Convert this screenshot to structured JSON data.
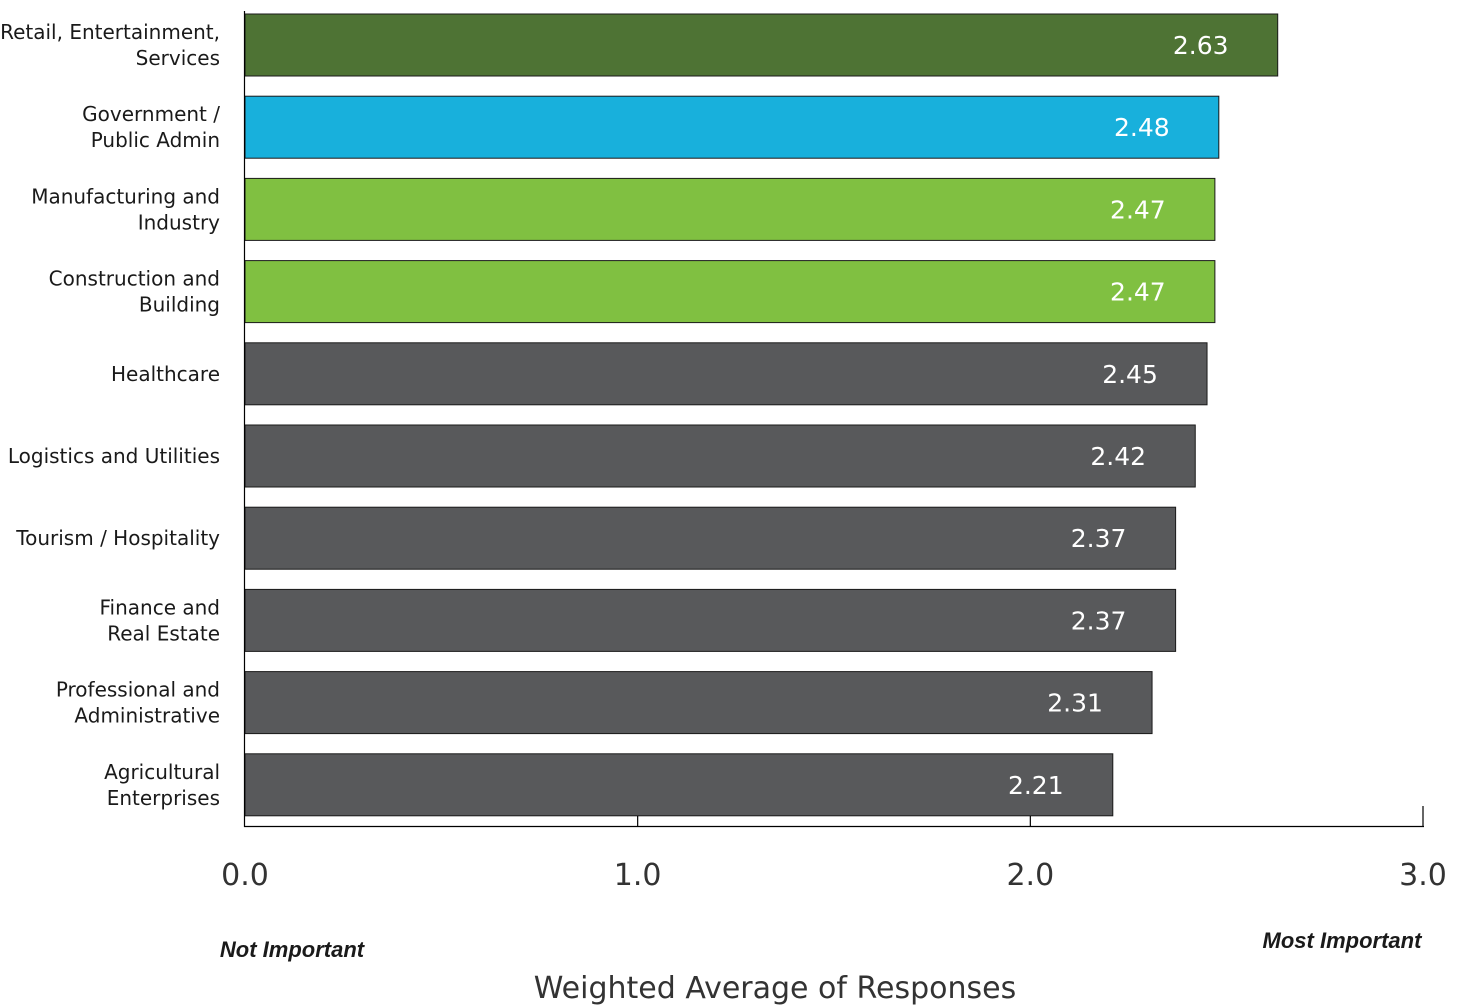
{
  "chart_data": {
    "type": "bar",
    "orientation": "horizontal",
    "categories": [
      [
        "Retail, Entertainment,",
        "Services"
      ],
      [
        "Government  /",
        "Public Admin"
      ],
      [
        "Manufacturing and",
        "Industry"
      ],
      [
        "Construction and",
        "Building"
      ],
      [
        "Healthcare"
      ],
      [
        "Logistics and Utilities"
      ],
      [
        "Tourism / Hospitality"
      ],
      [
        "Finance and",
        "Real Estate"
      ],
      [
        "Professional and",
        "Administrative"
      ],
      [
        "Agricultural",
        "Enterprises"
      ]
    ],
    "values": [
      2.63,
      2.48,
      2.47,
      2.47,
      2.45,
      2.42,
      2.37,
      2.37,
      2.31,
      2.21
    ],
    "value_labels": [
      "2.63",
      "2.48",
      "2.47",
      "2.47",
      "2.45",
      "2.42",
      "2.37",
      "2.37",
      "2.31",
      "2.21"
    ],
    "colors": [
      "#4e7334",
      "#18b0dc",
      "#80c041",
      "#80c041",
      "#58595b",
      "#58595b",
      "#58595b",
      "#58595b",
      "#58595b",
      "#58595b"
    ],
    "xlim": [
      0,
      3
    ],
    "ticks": [
      0,
      1,
      2,
      3
    ],
    "tick_labels": [
      "0.0",
      "1.0",
      "2.0",
      "3.0"
    ],
    "low_end_label": "Not Important",
    "high_end_label": "Most Important",
    "xlabel": "Weighted Average of Responses",
    "grid": false
  }
}
